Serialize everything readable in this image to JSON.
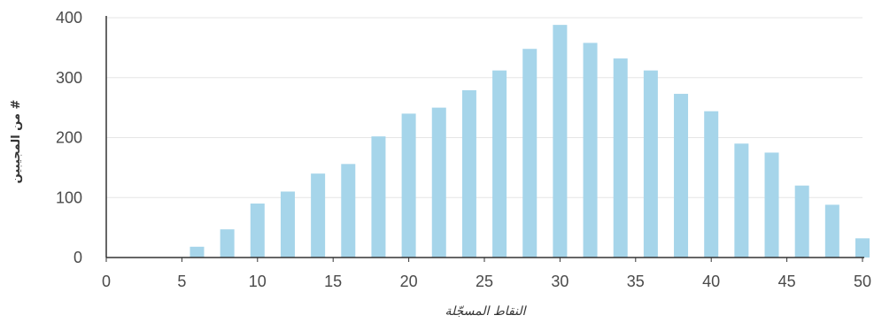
{
  "chart_data": {
    "type": "bar",
    "title": "",
    "xlabel": "النقاط المسجّلة",
    "ylabel": "# من المجيبين",
    "x": [
      6,
      8,
      10,
      12,
      14,
      16,
      18,
      20,
      22,
      24,
      26,
      28,
      30,
      32,
      34,
      36,
      38,
      40,
      42,
      44,
      46,
      48,
      50
    ],
    "values": [
      18,
      47,
      90,
      110,
      140,
      156,
      202,
      240,
      250,
      279,
      312,
      348,
      388,
      358,
      332,
      312,
      273,
      244,
      190,
      175,
      120,
      88,
      32
    ],
    "xlim": [
      0,
      50
    ],
    "ylim": [
      0,
      400
    ],
    "xticks": [
      "0",
      "5",
      "10",
      "15",
      "20",
      "25",
      "30",
      "35",
      "40",
      "45",
      "50"
    ],
    "yticks": [
      "0",
      "100",
      "200",
      "300",
      "400"
    ],
    "bar_color": "#a6d5ea",
    "grid": true,
    "legend": "none"
  }
}
